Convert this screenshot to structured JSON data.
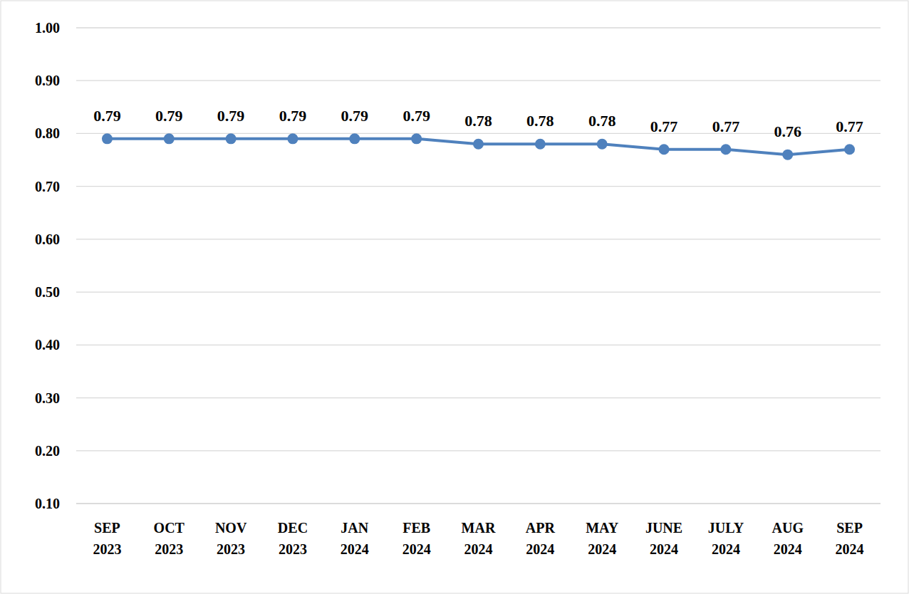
{
  "chart_data": {
    "type": "line",
    "categories": [
      "SEP 2023",
      "OCT 2023",
      "NOV 2023",
      "DEC 2023",
      "JAN 2024",
      "FEB 2024",
      "MAR 2024",
      "APR 2024",
      "MAY 2024",
      "JUNE 2024",
      "JULY 2024",
      "AUG 2024",
      "SEP 2024"
    ],
    "values": [
      0.79,
      0.79,
      0.79,
      0.79,
      0.79,
      0.79,
      0.78,
      0.78,
      0.78,
      0.77,
      0.77,
      0.76,
      0.77
    ],
    "color": "#4f81bd",
    "marker": "circle",
    "ylim": [
      0.1,
      1.0
    ],
    "yticks": [
      {
        "value": 0.1,
        "label": "0.10"
      },
      {
        "value": 0.2,
        "label": "0.20"
      },
      {
        "value": 0.3,
        "label": "0.30"
      },
      {
        "value": 0.4,
        "label": "0.40"
      },
      {
        "value": 0.5,
        "label": "0.50"
      },
      {
        "value": 0.6,
        "label": "0.60"
      },
      {
        "value": 0.7,
        "label": "0.70"
      },
      {
        "value": 0.8,
        "label": "0.80"
      },
      {
        "value": 0.9,
        "label": "0.90"
      },
      {
        "value": 1.0,
        "label": "1.00"
      }
    ],
    "grid": true,
    "data_labels": true
  }
}
